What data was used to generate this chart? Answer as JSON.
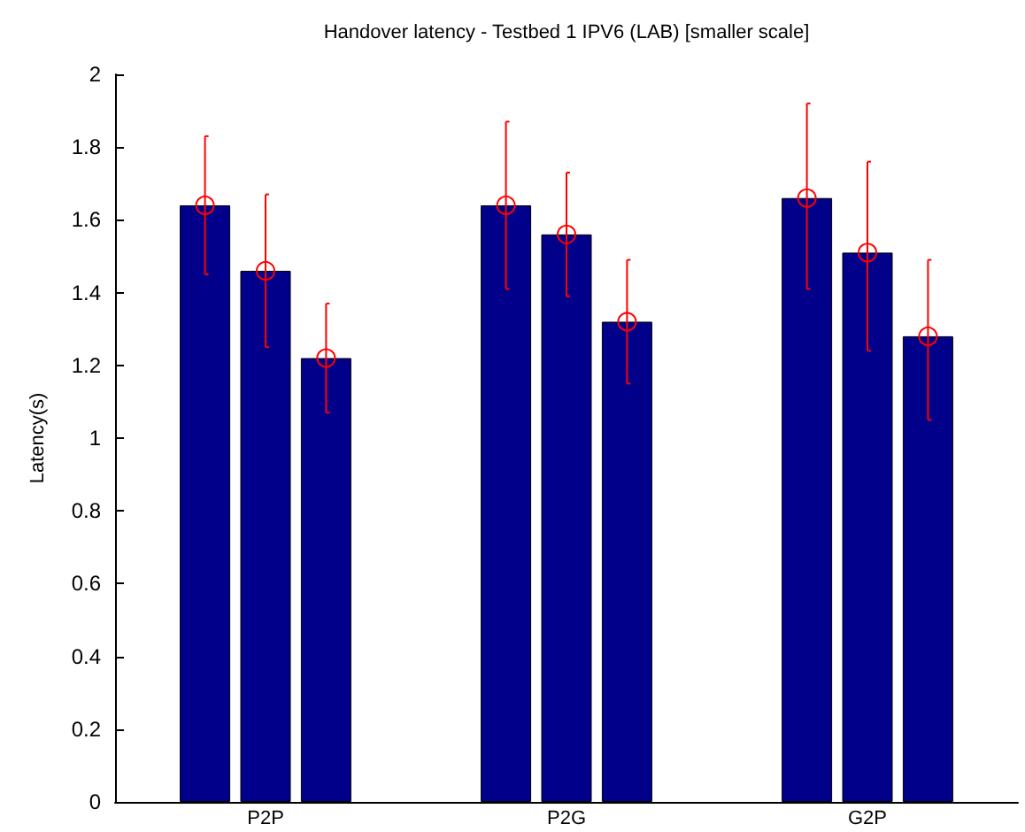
{
  "chart_data": {
    "type": "bar",
    "title": "Handover latency - Testbed 1 IPV6 (LAB) [smaller scale]",
    "ylabel": "Latency(s)",
    "categories": [
      "P2P",
      "P2G",
      "G2P"
    ],
    "series": [
      {
        "color": "#00008b",
        "marker": "circle",
        "values": [
          1.64,
          1.64,
          1.66
        ],
        "errors": [
          [
            1.45,
            1.83
          ],
          [
            1.41,
            1.87
          ],
          [
            1.41,
            1.92
          ]
        ]
      },
      {
        "color": "#00008b",
        "marker": "circle",
        "values": [
          1.46,
          1.56,
          1.51
        ],
        "errors": [
          [
            1.25,
            1.67
          ],
          [
            1.39,
            1.73
          ],
          [
            1.24,
            1.76
          ]
        ]
      },
      {
        "color": "#00008b",
        "marker": "circle",
        "values": [
          1.22,
          1.32,
          1.28
        ],
        "errors": [
          [
            1.07,
            1.37
          ],
          [
            1.15,
            1.49
          ],
          [
            1.05,
            1.49
          ]
        ]
      }
    ],
    "ylim": [
      0,
      2
    ],
    "yticks": [
      0,
      0.2,
      0.4,
      0.6,
      0.8,
      1,
      1.2,
      1.4,
      1.6,
      1.8,
      2
    ],
    "grid": false
  }
}
